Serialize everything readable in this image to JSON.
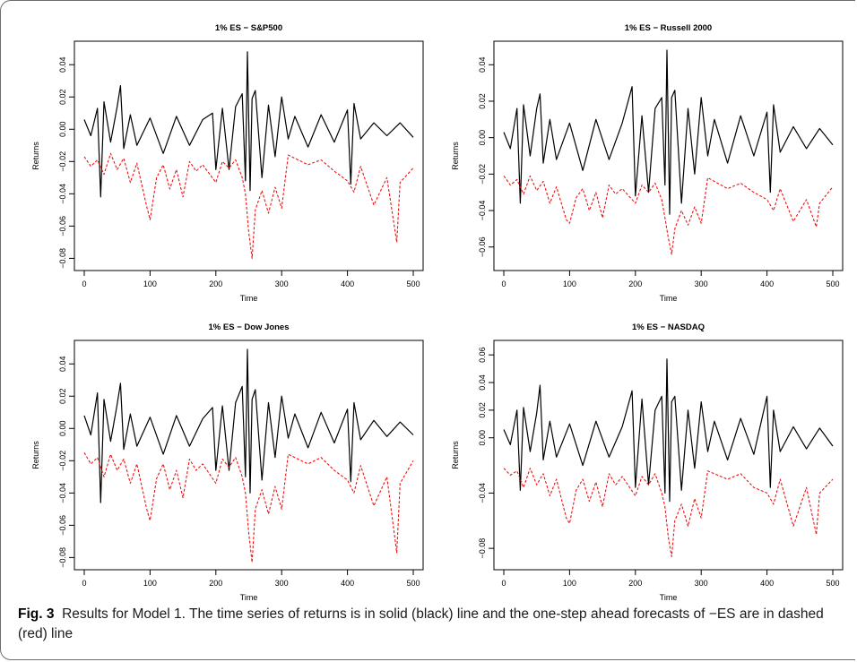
{
  "caption": {
    "label": "Fig. 3",
    "text": "Results for Model 1. The time series of returns is in solid (black) line and the one-step ahead forecasts of −ES are in dashed (red) line"
  },
  "colors": {
    "returns": "#000000",
    "es_forecast": "#ee1111",
    "axis": "#000000"
  },
  "chart_data": [
    {
      "type": "line",
      "title": "1% ES − S&P500",
      "xlabel": "Time",
      "ylabel": "Returns",
      "xlim": [
        0,
        500
      ],
      "ylim": [
        -0.082,
        0.049
      ],
      "xticks": [
        0,
        100,
        200,
        300,
        400,
        500
      ],
      "xtick_labels": [
        "0",
        "100",
        "200",
        "300",
        "400",
        "500"
      ],
      "yticks": [
        -0.08,
        -0.06,
        -0.04,
        -0.02,
        0.0,
        0.02,
        0.04
      ],
      "ytick_labels": [
        "−0.08",
        "−0.06",
        "−0.04",
        "−0.02",
        "0.00",
        "0.02",
        "0.04"
      ],
      "grid": false,
      "series": [
        {
          "style": "solid",
          "color": "#000000",
          "x": [
            0,
            10,
            20,
            25,
            30,
            40,
            50,
            55,
            60,
            70,
            80,
            100,
            120,
            140,
            160,
            180,
            195,
            200,
            210,
            220,
            230,
            240,
            245,
            248,
            252,
            255,
            260,
            270,
            280,
            290,
            300,
            310,
            320,
            340,
            360,
            380,
            400,
            405,
            410,
            420,
            440,
            460,
            480,
            500
          ],
          "y": [
            0.006,
            -0.004,
            0.013,
            -0.042,
            0.017,
            -0.008,
            0.014,
            0.027,
            -0.012,
            0.009,
            -0.01,
            0.007,
            -0.015,
            0.008,
            -0.01,
            0.006,
            0.01,
            -0.025,
            0.013,
            -0.025,
            0.014,
            0.022,
            -0.032,
            0.048,
            -0.038,
            0.019,
            0.024,
            -0.03,
            0.015,
            -0.017,
            0.02,
            -0.006,
            0.008,
            -0.011,
            0.009,
            -0.008,
            0.012,
            -0.034,
            0.016,
            -0.006,
            0.004,
            -0.004,
            0.004,
            -0.005
          ]
        },
        {
          "style": "dashed",
          "color": "#ee1111",
          "x": [
            0,
            10,
            20,
            30,
            40,
            50,
            60,
            70,
            80,
            95,
            100,
            110,
            120,
            130,
            140,
            150,
            160,
            170,
            180,
            200,
            210,
            220,
            230,
            240,
            245,
            250,
            255,
            260,
            270,
            280,
            290,
            300,
            310,
            320,
            340,
            360,
            380,
            400,
            410,
            420,
            440,
            460,
            475,
            480,
            500
          ],
          "y": [
            -0.017,
            -0.023,
            -0.019,
            -0.028,
            -0.015,
            -0.025,
            -0.018,
            -0.033,
            -0.021,
            -0.048,
            -0.056,
            -0.03,
            -0.022,
            -0.037,
            -0.025,
            -0.042,
            -0.02,
            -0.026,
            -0.022,
            -0.033,
            -0.02,
            -0.024,
            -0.019,
            -0.03,
            -0.04,
            -0.064,
            -0.08,
            -0.05,
            -0.038,
            -0.052,
            -0.036,
            -0.049,
            -0.016,
            -0.018,
            -0.022,
            -0.019,
            -0.026,
            -0.032,
            -0.039,
            -0.023,
            -0.047,
            -0.03,
            -0.07,
            -0.033,
            -0.024
          ]
        }
      ]
    },
    {
      "type": "line",
      "title": "1% ES − Russell 2000",
      "xlabel": "Time",
      "ylabel": "Returns",
      "xlim": [
        0,
        500
      ],
      "ylim": [
        -0.068,
        0.048
      ],
      "xticks": [
        0,
        100,
        200,
        300,
        400,
        500
      ],
      "xtick_labels": [
        "0",
        "100",
        "200",
        "300",
        "400",
        "500"
      ],
      "yticks": [
        -0.06,
        -0.04,
        -0.02,
        0.0,
        0.02,
        0.04
      ],
      "ytick_labels": [
        "−0.06",
        "−0.04",
        "−0.02",
        "0.00",
        "0.02",
        "0.04"
      ],
      "grid": false,
      "series": [
        {
          "style": "solid",
          "color": "#000000",
          "x": [
            0,
            10,
            20,
            25,
            30,
            40,
            50,
            55,
            60,
            70,
            80,
            100,
            120,
            140,
            160,
            180,
            195,
            200,
            210,
            220,
            230,
            240,
            245,
            248,
            252,
            255,
            260,
            270,
            280,
            290,
            300,
            310,
            320,
            340,
            360,
            380,
            400,
            405,
            410,
            420,
            440,
            460,
            480,
            500
          ],
          "y": [
            0.003,
            -0.006,
            0.016,
            -0.036,
            0.018,
            -0.01,
            0.016,
            0.024,
            -0.014,
            0.01,
            -0.012,
            0.008,
            -0.018,
            0.01,
            -0.012,
            0.008,
            0.028,
            -0.032,
            0.012,
            -0.03,
            0.016,
            0.022,
            -0.026,
            0.048,
            -0.042,
            0.022,
            0.026,
            -0.036,
            0.016,
            -0.02,
            0.022,
            -0.01,
            0.01,
            -0.014,
            0.012,
            -0.01,
            0.014,
            -0.03,
            0.018,
            -0.008,
            0.006,
            -0.006,
            0.005,
            -0.004
          ]
        },
        {
          "style": "dashed",
          "color": "#ee1111",
          "x": [
            0,
            10,
            20,
            30,
            40,
            50,
            60,
            70,
            80,
            95,
            100,
            110,
            120,
            130,
            140,
            150,
            160,
            170,
            180,
            200,
            210,
            220,
            230,
            240,
            245,
            250,
            255,
            260,
            270,
            280,
            290,
            300,
            310,
            320,
            340,
            360,
            380,
            400,
            410,
            420,
            440,
            460,
            475,
            480,
            500
          ],
          "y": [
            -0.021,
            -0.026,
            -0.023,
            -0.031,
            -0.021,
            -0.029,
            -0.024,
            -0.036,
            -0.027,
            -0.045,
            -0.047,
            -0.033,
            -0.028,
            -0.04,
            -0.03,
            -0.044,
            -0.026,
            -0.031,
            -0.028,
            -0.036,
            -0.026,
            -0.03,
            -0.025,
            -0.034,
            -0.044,
            -0.055,
            -0.064,
            -0.05,
            -0.04,
            -0.048,
            -0.038,
            -0.047,
            -0.022,
            -0.024,
            -0.028,
            -0.025,
            -0.03,
            -0.034,
            -0.04,
            -0.028,
            -0.046,
            -0.034,
            -0.049,
            -0.036,
            -0.027
          ]
        }
      ]
    },
    {
      "type": "line",
      "title": "1% ES − Dow Jones",
      "xlabel": "Time",
      "ylabel": "Returns",
      "xlim": [
        0,
        500
      ],
      "ylim": [
        -0.082,
        0.049
      ],
      "xticks": [
        0,
        100,
        200,
        300,
        400,
        500
      ],
      "xtick_labels": [
        "0",
        "100",
        "200",
        "300",
        "400",
        "500"
      ],
      "yticks": [
        -0.08,
        -0.06,
        -0.04,
        -0.02,
        0.0,
        0.02,
        0.04
      ],
      "ytick_labels": [
        "−0.08",
        "−0.06",
        "−0.04",
        "−0.02",
        "0.00",
        "0.02",
        "0.04"
      ],
      "grid": false,
      "series": [
        {
          "style": "solid",
          "color": "#000000",
          "x": [
            0,
            10,
            20,
            25,
            30,
            40,
            50,
            55,
            60,
            70,
            80,
            100,
            120,
            140,
            160,
            180,
            195,
            200,
            210,
            220,
            230,
            240,
            245,
            248,
            252,
            255,
            260,
            270,
            280,
            290,
            300,
            310,
            320,
            340,
            360,
            380,
            400,
            405,
            410,
            420,
            440,
            460,
            480,
            500
          ],
          "y": [
            0.008,
            -0.004,
            0.022,
            -0.046,
            0.018,
            -0.008,
            0.015,
            0.028,
            -0.013,
            0.009,
            -0.011,
            0.007,
            -0.016,
            0.008,
            -0.011,
            0.006,
            0.013,
            -0.026,
            0.014,
            -0.026,
            0.016,
            0.026,
            -0.03,
            0.049,
            -0.04,
            0.018,
            0.024,
            -0.032,
            0.016,
            -0.018,
            0.02,
            -0.006,
            0.009,
            -0.012,
            0.01,
            -0.009,
            0.012,
            -0.033,
            0.016,
            -0.007,
            0.005,
            -0.005,
            0.004,
            -0.004
          ]
        },
        {
          "style": "dashed",
          "color": "#ee1111",
          "x": [
            0,
            10,
            20,
            30,
            40,
            50,
            60,
            70,
            80,
            95,
            100,
            110,
            120,
            130,
            140,
            150,
            160,
            170,
            180,
            200,
            210,
            220,
            230,
            240,
            245,
            250,
            255,
            260,
            270,
            280,
            290,
            300,
            310,
            320,
            340,
            360,
            380,
            400,
            410,
            420,
            440,
            460,
            475,
            480,
            500
          ],
          "y": [
            -0.015,
            -0.022,
            -0.018,
            -0.03,
            -0.016,
            -0.026,
            -0.019,
            -0.034,
            -0.022,
            -0.05,
            -0.057,
            -0.031,
            -0.022,
            -0.038,
            -0.026,
            -0.043,
            -0.019,
            -0.026,
            -0.022,
            -0.034,
            -0.019,
            -0.024,
            -0.018,
            -0.03,
            -0.04,
            -0.065,
            -0.083,
            -0.05,
            -0.038,
            -0.053,
            -0.036,
            -0.05,
            -0.016,
            -0.018,
            -0.022,
            -0.018,
            -0.026,
            -0.032,
            -0.04,
            -0.023,
            -0.048,
            -0.03,
            -0.077,
            -0.034,
            -0.02
          ]
        }
      ]
    },
    {
      "type": "line",
      "title": "1% ES − NASDAQ",
      "xlabel": "Time",
      "ylabel": "Returns",
      "xlim": [
        0,
        500
      ],
      "ylim": [
        -0.089,
        0.064
      ],
      "xticks": [
        0,
        100,
        200,
        300,
        400,
        500
      ],
      "xtick_labels": [
        "0",
        "100",
        "200",
        "300",
        "400",
        "500"
      ],
      "yticks": [
        -0.08,
        -0.04,
        0.0,
        0.02,
        0.04,
        0.06
      ],
      "ytick_labels": [
        "−0.08",
        "−0.04",
        "0.00",
        "0.02",
        "0.04",
        "0.06"
      ],
      "grid": false,
      "series": [
        {
          "style": "solid",
          "color": "#000000",
          "x": [
            0,
            10,
            20,
            25,
            30,
            40,
            50,
            55,
            60,
            70,
            80,
            100,
            120,
            140,
            160,
            180,
            195,
            200,
            210,
            220,
            230,
            240,
            245,
            248,
            252,
            255,
            260,
            270,
            280,
            290,
            300,
            310,
            320,
            340,
            360,
            380,
            400,
            405,
            410,
            420,
            440,
            460,
            480,
            500
          ],
          "y": [
            0.006,
            -0.005,
            0.02,
            -0.038,
            0.022,
            -0.01,
            0.018,
            0.038,
            -0.016,
            0.012,
            -0.014,
            0.01,
            -0.02,
            0.012,
            -0.014,
            0.008,
            0.034,
            -0.036,
            0.028,
            -0.034,
            0.02,
            0.03,
            -0.04,
            0.057,
            -0.046,
            0.026,
            0.03,
            -0.038,
            0.02,
            -0.022,
            0.026,
            -0.01,
            0.012,
            -0.016,
            0.014,
            -0.012,
            0.03,
            -0.036,
            0.02,
            -0.01,
            0.008,
            -0.008,
            0.007,
            -0.006
          ]
        },
        {
          "style": "dashed",
          "color": "#ee1111",
          "x": [
            0,
            10,
            20,
            30,
            40,
            50,
            60,
            70,
            80,
            95,
            100,
            110,
            120,
            130,
            140,
            150,
            160,
            170,
            180,
            200,
            210,
            220,
            230,
            240,
            245,
            250,
            255,
            260,
            270,
            280,
            290,
            300,
            310,
            320,
            340,
            360,
            380,
            400,
            410,
            420,
            440,
            460,
            475,
            480,
            500
          ],
          "y": [
            -0.022,
            -0.027,
            -0.024,
            -0.036,
            -0.022,
            -0.034,
            -0.026,
            -0.042,
            -0.03,
            -0.058,
            -0.062,
            -0.038,
            -0.03,
            -0.046,
            -0.032,
            -0.05,
            -0.026,
            -0.034,
            -0.028,
            -0.042,
            -0.028,
            -0.034,
            -0.026,
            -0.04,
            -0.05,
            -0.072,
            -0.086,
            -0.06,
            -0.048,
            -0.064,
            -0.044,
            -0.058,
            -0.024,
            -0.026,
            -0.03,
            -0.026,
            -0.036,
            -0.04,
            -0.048,
            -0.03,
            -0.064,
            -0.036,
            -0.07,
            -0.04,
            -0.03
          ]
        }
      ]
    }
  ]
}
